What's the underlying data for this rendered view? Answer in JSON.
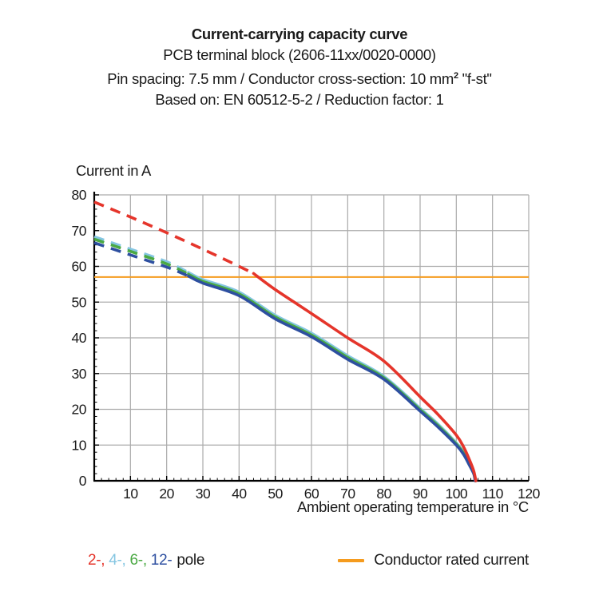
{
  "title": {
    "line1": "Current-carrying capacity curve",
    "line2": "PCB terminal block (2606-11xx/0020-0000)",
    "line3_pre": "Pin spacing: 7.5 mm / Conductor cross-section: 10 mm",
    "line3_sup": "2",
    "line3_post": " \"f-st\"",
    "line4": "Based on: EN 60512-5-2 / Reduction factor: 1"
  },
  "chart_data": {
    "type": "line",
    "title": "Current-carrying capacity curve",
    "xlabel": "Ambient operating temperature in °C",
    "ylabel": "Current in A",
    "xlim": [
      0,
      120
    ],
    "ylim": [
      0,
      80
    ],
    "x_ticks": [
      10,
      20,
      30,
      40,
      50,
      60,
      70,
      80,
      90,
      100,
      110,
      120
    ],
    "y_ticks": [
      0,
      10,
      20,
      30,
      40,
      50,
      60,
      70,
      80
    ],
    "minor_tick_step": 2,
    "grid": true,
    "legend_position": "bottom",
    "reference_line": {
      "label": "Conductor rated current",
      "value": 57,
      "color": "#F59B1E"
    },
    "series": [
      {
        "name": "4-pole",
        "color": "#85C6E2",
        "dashed_until_x": 26,
        "points": [
          [
            0,
            68.3
          ],
          [
            10,
            64.8
          ],
          [
            20,
            61.3
          ],
          [
            26,
            58.3
          ],
          [
            30,
            56.3
          ],
          [
            40,
            52.8
          ],
          [
            50,
            46.3
          ],
          [
            60,
            41.3
          ],
          [
            70,
            35.0
          ],
          [
            80,
            29.2
          ],
          [
            90,
            20.3
          ],
          [
            95,
            15.8
          ],
          [
            100,
            10.6
          ],
          [
            102,
            8.0
          ],
          [
            103.5,
            5.0
          ],
          [
            104.8,
            2.2
          ],
          [
            105.3,
            0
          ]
        ]
      },
      {
        "name": "6-pole",
        "color": "#4AA943",
        "dashed_until_x": 26,
        "points": [
          [
            0,
            67.6
          ],
          [
            10,
            64.2
          ],
          [
            20,
            60.7
          ],
          [
            26,
            57.8
          ],
          [
            30,
            55.8
          ],
          [
            40,
            52.3
          ],
          [
            50,
            45.8
          ],
          [
            60,
            40.8
          ],
          [
            70,
            34.5
          ],
          [
            80,
            28.8
          ],
          [
            90,
            19.9
          ],
          [
            95,
            15.4
          ],
          [
            100,
            10.3
          ],
          [
            102,
            7.7
          ],
          [
            103.5,
            4.8
          ],
          [
            104.8,
            2.1
          ],
          [
            105.3,
            0
          ]
        ]
      },
      {
        "name": "12-pole",
        "color": "#2D4FA0",
        "dashed_until_x": 26,
        "points": [
          [
            0,
            66.6
          ],
          [
            10,
            63.2
          ],
          [
            20,
            59.8
          ],
          [
            26,
            57.3
          ],
          [
            30,
            55.3
          ],
          [
            40,
            51.8
          ],
          [
            50,
            45.3
          ],
          [
            60,
            40.3
          ],
          [
            70,
            34.0
          ],
          [
            80,
            28.4
          ],
          [
            90,
            19.5
          ],
          [
            95,
            15.0
          ],
          [
            100,
            10.0
          ],
          [
            102,
            7.4
          ],
          [
            103.5,
            4.6
          ],
          [
            104.8,
            2.0
          ],
          [
            105.2,
            0
          ]
        ]
      },
      {
        "name": "2-pole",
        "color": "#E5352B",
        "dashed_until_x": 44,
        "points": [
          [
            0,
            78.0
          ],
          [
            10,
            73.8
          ],
          [
            20,
            69.4
          ],
          [
            30,
            64.8
          ],
          [
            40,
            60.0
          ],
          [
            44,
            58.0
          ],
          [
            50,
            53.5
          ],
          [
            60,
            46.8
          ],
          [
            70,
            40.0
          ],
          [
            80,
            33.5
          ],
          [
            90,
            23.5
          ],
          [
            95,
            18.5
          ],
          [
            100,
            12.8
          ],
          [
            102,
            9.5
          ],
          [
            103.5,
            6.2
          ],
          [
            104.8,
            2.8
          ],
          [
            105.4,
            0
          ]
        ]
      }
    ]
  },
  "legend": {
    "poles": [
      {
        "label": "2-,",
        "color": "#E5352B"
      },
      {
        "label": "4-,",
        "color": "#85C6E2"
      },
      {
        "label": "6-,",
        "color": "#4AA943"
      },
      {
        "label": "12-",
        "color": "#2D4FA0"
      }
    ],
    "pole_suffix": "pole",
    "rated_label": "Conductor rated current",
    "rated_color": "#F59B1E"
  },
  "colors": {
    "grid": "#ABABAB",
    "axis": "#000000",
    "text": "#1A1A1A",
    "background": "#FFFFFF"
  }
}
